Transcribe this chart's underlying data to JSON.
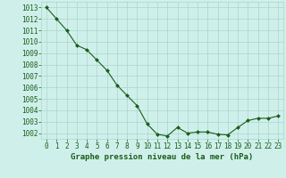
{
  "x": [
    0,
    1,
    2,
    3,
    4,
    5,
    6,
    7,
    8,
    9,
    10,
    11,
    12,
    13,
    14,
    15,
    16,
    17,
    18,
    19,
    20,
    21,
    22,
    23
  ],
  "y": [
    1013.0,
    1012.0,
    1011.0,
    1009.7,
    1009.3,
    1008.4,
    1007.5,
    1006.2,
    1005.3,
    1004.4,
    1002.8,
    1001.9,
    1001.75,
    1002.5,
    1002.0,
    1002.1,
    1002.1,
    1001.9,
    1001.85,
    1002.5,
    1003.1,
    1003.3,
    1003.3,
    1003.5
  ],
  "line_color": "#1a5c1a",
  "marker": "D",
  "marker_size": 2.0,
  "bg_color": "#cff0ea",
  "grid_color": "#aad4ce",
  "axis_label_color": "#1a5c1a",
  "tick_color": "#1a5c1a",
  "xlabel": "Graphe pression niveau de la mer (hPa)",
  "ylim": [
    1001.5,
    1013.5
  ],
  "yticks": [
    1002,
    1003,
    1004,
    1005,
    1006,
    1007,
    1008,
    1009,
    1010,
    1011,
    1012,
    1013
  ],
  "xticks": [
    0,
    1,
    2,
    3,
    4,
    5,
    6,
    7,
    8,
    9,
    10,
    11,
    12,
    13,
    14,
    15,
    16,
    17,
    18,
    19,
    20,
    21,
    22,
    23
  ],
  "tick_fontsize": 5.5,
  "xlabel_fontsize": 6.5
}
